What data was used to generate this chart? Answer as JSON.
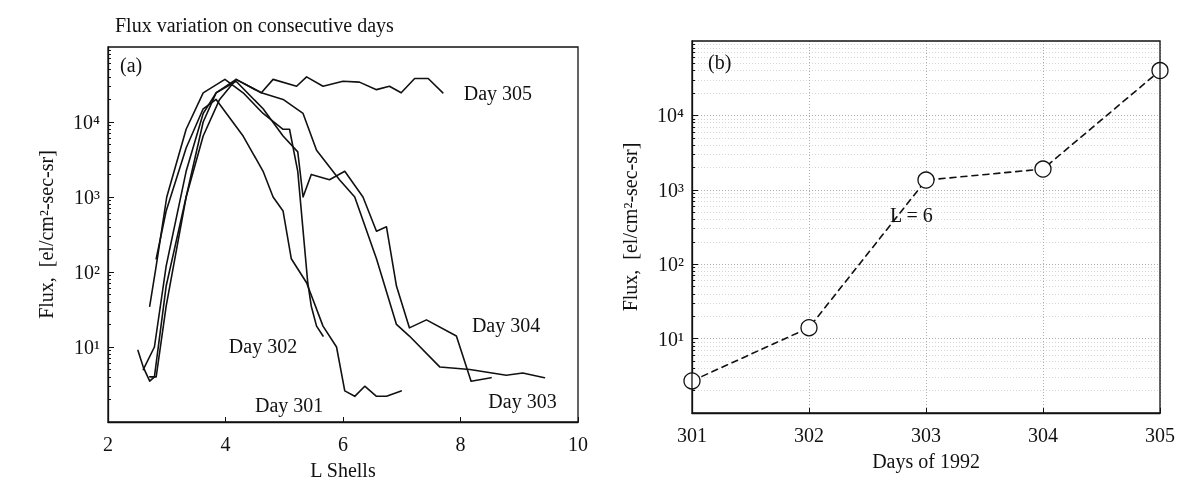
{
  "chart_data": [
    {
      "type": "line",
      "title": "Flux variation on consecutive days",
      "xlabel": "L Shells",
      "ylabel": "Flux,  [el/cm²-sec-sr]",
      "log": "y",
      "grid": false,
      "legend": false,
      "marker": "none",
      "line_style": "solid",
      "xlim": [
        2,
        10
      ],
      "xticks": [
        2,
        4,
        6,
        8,
        10
      ],
      "ylim": [
        1,
        100000
      ],
      "yticks": [
        {
          "value": 10,
          "label": "10¹"
        },
        {
          "value": 100,
          "label": "10²"
        },
        {
          "value": 1000,
          "label": "10³"
        },
        {
          "value": 10000,
          "label": "10⁴"
        }
      ],
      "annotations": [
        "(a)"
      ],
      "series": [
        {
          "name": "Day 305",
          "color": "#111111",
          "x": [
            2.51,
            2.6,
            2.71,
            2.79,
            2.99,
            3.33,
            3.62,
            3.9,
            4.18,
            4.61,
            4.81,
            5.21,
            5.38,
            5.66,
            6.0,
            6.28,
            6.57,
            6.79,
            6.99,
            7.22,
            7.45,
            7.7
          ],
          "values": [
            9,
            5.4,
            3.5,
            4,
            65,
            1000,
            6500,
            20000,
            37000,
            24500,
            37000,
            30000,
            40000,
            30000,
            35000,
            34000,
            27000,
            30000,
            24500,
            38000,
            38000,
            24500
          ]
        },
        {
          "name": "Day 301",
          "color": "#111111",
          "x": [
            2.82,
            2.99,
            3.33,
            3.62,
            3.84,
            4.3,
            4.64,
            4.81,
            4.98,
            5.12,
            5.38,
            5.66,
            5.89,
            6.03,
            6.2,
            6.37,
            6.57,
            6.74,
            6.99
          ],
          "values": [
            150,
            650,
            4500,
            15000,
            20000,
            6500,
            2200,
            1000,
            650,
            150,
            72,
            19,
            10,
            2.6,
            2.2,
            3,
            2.2,
            2.2,
            2.6
          ]
        },
        {
          "name": "Day 302",
          "color": "#111111",
          "x": [
            2.71,
            2.82,
            3.0,
            3.33,
            3.62,
            3.99,
            4.3,
            4.64,
            4.98,
            5.09,
            5.23,
            5.4,
            5.46,
            5.55,
            5.66
          ],
          "values": [
            35,
            120,
            1000,
            8000,
            24500,
            37000,
            24500,
            13000,
            8000,
            8000,
            2200,
            72,
            35,
            19,
            14
          ]
        },
        {
          "name": "Day 303",
          "color": "#111111",
          "x": [
            2.6,
            2.79,
            2.99,
            3.33,
            3.62,
            3.84,
            4.18,
            4.61,
            4.98,
            5.32,
            5.55,
            5.94,
            6.2,
            6.57,
            6.91,
            7.13,
            7.65,
            8.16,
            8.78,
            9.06,
            9.43
          ],
          "values": [
            5,
            10,
            120,
            2200,
            13000,
            24500,
            37000,
            24500,
            20000,
            13000,
            4200,
            1700,
            1000,
            150,
            20,
            14,
            5.4,
            5,
            4.2,
            4.5,
            3.9
          ]
        },
        {
          "name": "Day 304",
          "color": "#111111",
          "x": [
            2.71,
            2.82,
            2.99,
            3.33,
            3.62,
            3.84,
            4.18,
            4.64,
            4.98,
            5.23,
            5.32,
            5.46,
            5.77,
            6.03,
            6.34,
            6.57,
            6.74,
            6.91,
            7.13,
            7.42,
            7.93,
            8.18,
            8.52
          ],
          "values": [
            4,
            4,
            35,
            1000,
            10000,
            24500,
            35000,
            15000,
            6500,
            4000,
            1000,
            2000,
            1700,
            2200,
            1000,
            350,
            400,
            65,
            18,
            23,
            14,
            3.5,
            3.9
          ]
        }
      ]
    },
    {
      "type": "line",
      "xlabel": "Days of 1992",
      "ylabel": "Flux,  [el/cm²-sec-sr]",
      "log": "y",
      "grid": true,
      "legend": false,
      "marker": "circle",
      "line_style": "dashed",
      "xlim": [
        301,
        305
      ],
      "xticks": [
        301,
        302,
        303,
        304,
        305
      ],
      "ylim": [
        1,
        100000
      ],
      "yticks": [
        {
          "value": 10,
          "label": "10¹"
        },
        {
          "value": 100,
          "label": "10²"
        },
        {
          "value": 1000,
          "label": "10³"
        },
        {
          "value": 10000,
          "label": "10⁴"
        }
      ],
      "annotations": [
        "(b)",
        "L = 6"
      ],
      "series": [
        {
          "color": "#111111",
          "x": [
            301,
            302,
            303,
            304,
            305
          ],
          "values": [
            2.7,
            14,
            1350,
            1900,
            40000
          ]
        }
      ]
    }
  ]
}
